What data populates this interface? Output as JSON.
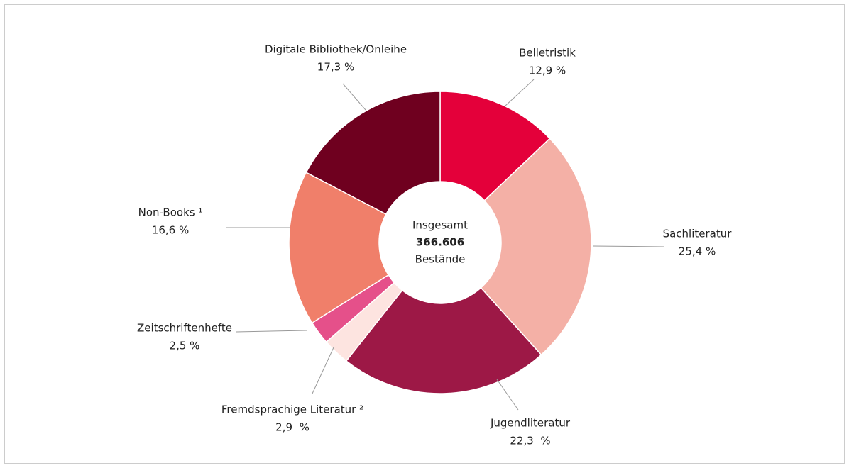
{
  "chart_data": {
    "type": "donut",
    "categories": [
      "Belletristik",
      "Sachliteratur",
      "Jugendliteratur",
      "Fremdsprachige Literatur ²",
      "Zeitschriftenhefte",
      "Non-Books ¹",
      "Digitale Bibliothek/Onleihe"
    ],
    "values": [
      12.9,
      25.4,
      22.3,
      2.9,
      2.5,
      16.6,
      17.3
    ],
    "value_labels": [
      "12,9 %",
      "25,4 %",
      "22,3  %",
      "2,9  %",
      "2,5 %",
      "16,6 %",
      "17,3 %"
    ],
    "colors": [
      "#e4003a",
      "#f4b0a6",
      "#9d1846",
      "#fde4e0",
      "#e5508a",
      "#f07f6a",
      "#6f001f"
    ],
    "center_label": [
      "Insgesamt",
      "366.606",
      "Bestände"
    ]
  }
}
